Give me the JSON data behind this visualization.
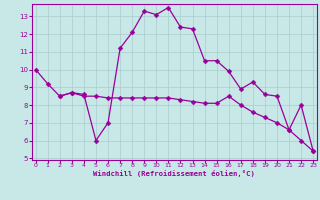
{
  "xlabel": "Windchill (Refroidissement éolien,°C)",
  "bg_color": "#c8e8e8",
  "line_color": "#990099",
  "grid_color": "#aacccc",
  "x_line1": [
    0,
    1,
    2,
    3,
    4,
    5,
    6,
    7,
    8,
    9,
    10,
    11,
    12,
    13,
    14,
    15,
    16,
    17,
    18,
    19,
    20,
    21,
    22,
    23
  ],
  "y_line1": [
    10.0,
    9.2,
    8.5,
    8.7,
    8.6,
    6.0,
    7.0,
    11.2,
    12.1,
    13.3,
    13.1,
    13.5,
    12.4,
    12.3,
    10.5,
    10.5,
    9.9,
    8.9,
    9.3,
    8.6,
    8.5,
    6.6,
    8.0,
    5.4
  ],
  "x_line2": [
    2,
    3,
    4,
    5,
    6,
    7,
    8,
    9,
    10,
    11,
    12,
    13,
    14,
    15,
    16,
    17,
    18,
    19,
    20,
    21,
    22,
    23
  ],
  "y_line2": [
    8.5,
    8.7,
    8.5,
    8.5,
    8.4,
    8.4,
    8.4,
    8.4,
    8.4,
    8.4,
    8.3,
    8.2,
    8.1,
    8.1,
    8.5,
    8.0,
    7.6,
    7.3,
    7.0,
    6.6,
    6.0,
    5.4
  ],
  "ylim": [
    5,
    13.5
  ],
  "xlim": [
    -0.3,
    23.3
  ],
  "yticks": [
    5,
    6,
    7,
    8,
    9,
    10,
    11,
    12,
    13
  ],
  "xticks": [
    0,
    1,
    2,
    3,
    4,
    5,
    6,
    7,
    8,
    9,
    10,
    11,
    12,
    13,
    14,
    15,
    16,
    17,
    18,
    19,
    20,
    21,
    22,
    23
  ],
  "markersize": 2.5,
  "linewidth": 0.9
}
